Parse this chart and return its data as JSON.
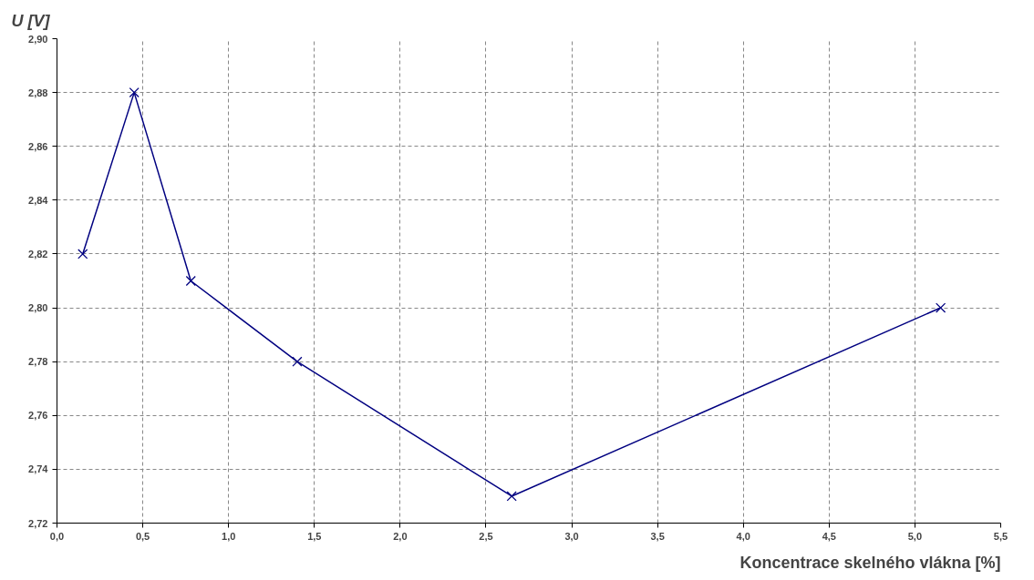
{
  "chart_data": {
    "type": "line",
    "xlabel": "Koncentrace skelného vlákna [%]",
    "ylabel": "U [V]",
    "x": [
      0.15,
      0.45,
      0.78,
      1.4,
      2.65,
      5.15
    ],
    "series": [
      {
        "color": "#000080",
        "values": [
          2.82,
          2.88,
          2.81,
          2.78,
          2.73,
          2.8
        ]
      }
    ],
    "xlim": [
      0,
      5.5
    ],
    "ylim": [
      2.72,
      2.9
    ],
    "xticks": [
      {
        "value": 0,
        "label": "0,0"
      },
      {
        "value": 0.5,
        "label": "0,5"
      },
      {
        "value": 1,
        "label": "1,0"
      },
      {
        "value": 1.5,
        "label": "1,5"
      },
      {
        "value": 2,
        "label": "2,0"
      },
      {
        "value": 2.5,
        "label": "2,5"
      },
      {
        "value": 3,
        "label": "3,0"
      },
      {
        "value": 3.5,
        "label": "3,5"
      },
      {
        "value": 4,
        "label": "4,0"
      },
      {
        "value": 4.5,
        "label": "4,5"
      },
      {
        "value": 5,
        "label": "5,0"
      },
      {
        "value": 5.5,
        "label": "5,5"
      }
    ],
    "yticks": [
      {
        "value": 2.72,
        "label": "2,72"
      },
      {
        "value": 2.74,
        "label": "2,74"
      },
      {
        "value": 2.76,
        "label": "2,76"
      },
      {
        "value": 2.78,
        "label": "2,78"
      },
      {
        "value": 2.8,
        "label": "2,80"
      },
      {
        "value": 2.82,
        "label": "2,82"
      },
      {
        "value": 2.84,
        "label": "2,84"
      },
      {
        "value": 2.86,
        "label": "2,86"
      },
      {
        "value": 2.88,
        "label": "2,88"
      },
      {
        "value": 2.9,
        "label": "2,90"
      }
    ],
    "grid": true,
    "marker": "cross",
    "line_style": "solid"
  }
}
